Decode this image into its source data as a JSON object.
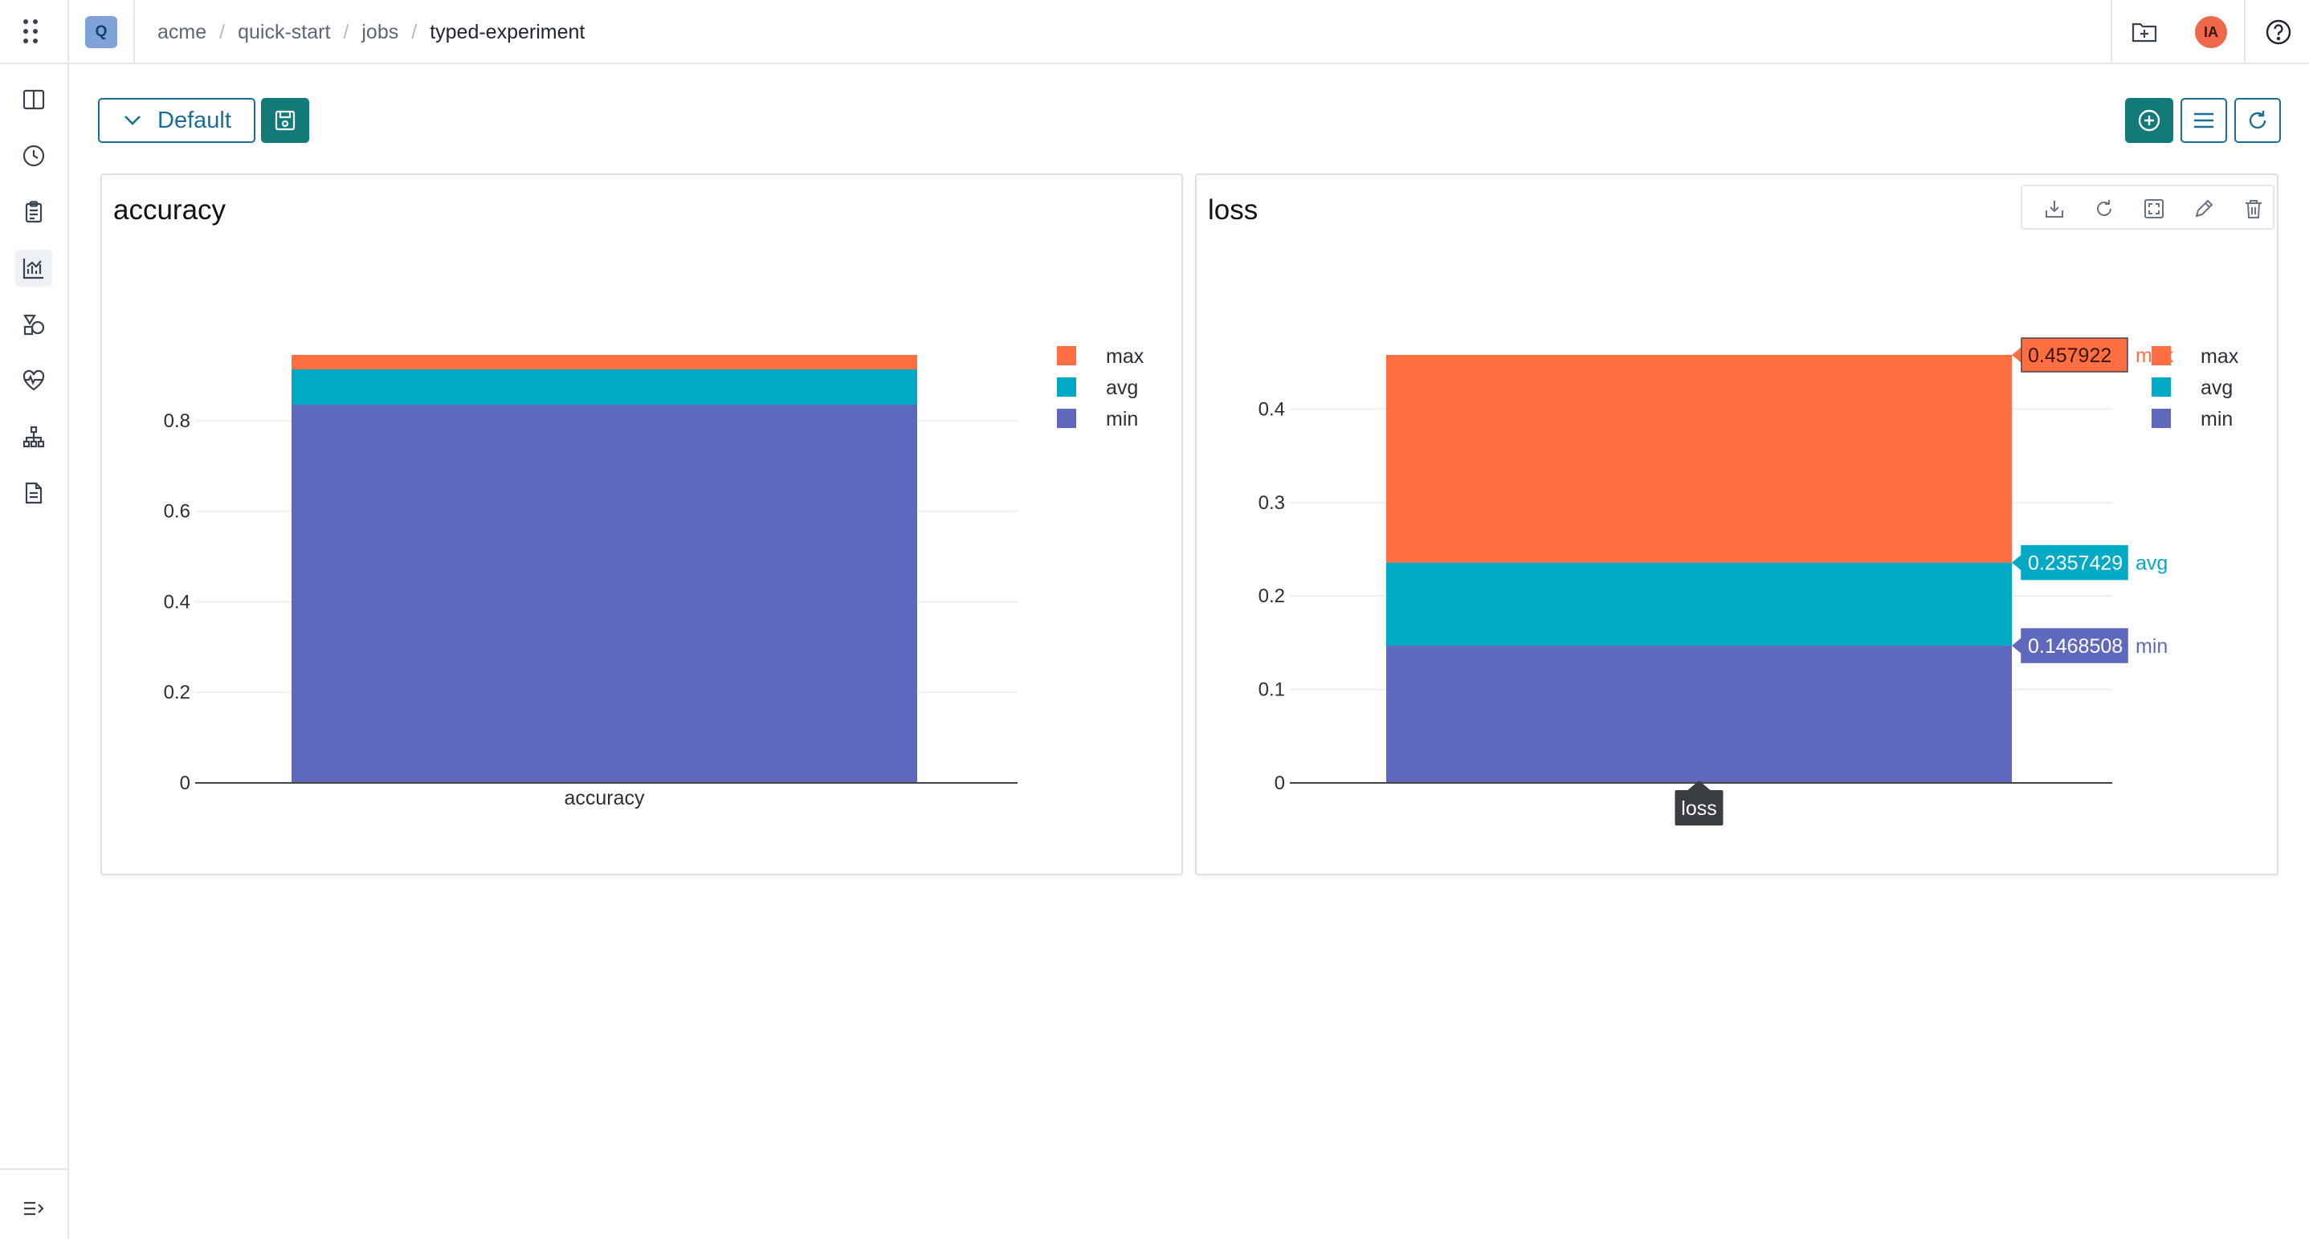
{
  "header": {
    "project_badge": "Q",
    "breadcrumb": [
      "acme",
      "quick-start",
      "jobs",
      "typed-experiment"
    ],
    "avatar_initials": "IA"
  },
  "sidebar": {
    "items": [
      {
        "name": "compare",
        "icon": "columns-icon"
      },
      {
        "name": "history",
        "icon": "clock-icon"
      },
      {
        "name": "clipboard",
        "icon": "clipboard-icon"
      },
      {
        "name": "charts",
        "icon": "chart-icon",
        "active": true
      },
      {
        "name": "artifacts",
        "icon": "shapes-icon"
      },
      {
        "name": "health",
        "icon": "heartbeat-icon"
      },
      {
        "name": "hierarchy",
        "icon": "hierarchy-icon"
      },
      {
        "name": "logs",
        "icon": "document-icon"
      }
    ],
    "collapse_icon": "expand-sidebar-icon"
  },
  "toolbar": {
    "preset_label": "Default"
  },
  "colors": {
    "max": "#ff6f42",
    "avg": "#00aac4",
    "min": "#5e69bd",
    "accent": "#127b7a",
    "link": "#1c6f94"
  },
  "chart_data": [
    {
      "type": "bar",
      "stacked": true,
      "title": "accuracy",
      "categories": [
        "accuracy"
      ],
      "series": [
        {
          "name": "min",
          "values": [
            0.835
          ]
        },
        {
          "name": "avg",
          "values": [
            0.078
          ]
        },
        {
          "name": "max",
          "values": [
            0.032
          ]
        }
      ],
      "yticks": [
        "0",
        "0.2",
        "0.4",
        "0.6",
        "0.8"
      ],
      "ylim": [
        0,
        0.945
      ],
      "grid": true,
      "legend": "top-right",
      "hover_labels": []
    },
    {
      "type": "bar",
      "stacked": true,
      "title": "loss",
      "categories": [
        "loss"
      ],
      "series": [
        {
          "name": "min",
          "values": [
            0.1468508
          ]
        },
        {
          "name": "avg",
          "values": [
            0.0888921
          ]
        },
        {
          "name": "max",
          "values": [
            0.2221791
          ]
        }
      ],
      "yticks": [
        "0",
        "0.1",
        "0.2",
        "0.3",
        "0.4"
      ],
      "ylim": [
        0,
        0.457922
      ],
      "grid": true,
      "legend": "top-right",
      "hover_labels": [
        {
          "series": "max",
          "value": "0.457922",
          "name": "max"
        },
        {
          "series": "avg",
          "value": "0.2357429",
          "name": "avg"
        },
        {
          "series": "min",
          "value": "0.1468508",
          "name": "min"
        }
      ],
      "x_hover_label": "loss"
    }
  ]
}
